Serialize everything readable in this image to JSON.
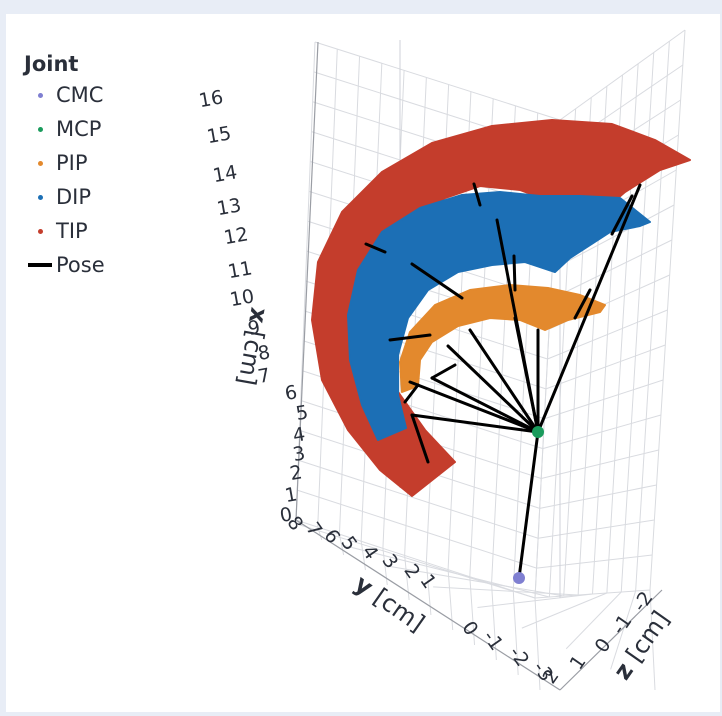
{
  "chart_data": {
    "type": "scatter",
    "title": "",
    "legend_title": "Joint",
    "series": [
      {
        "name": "CMC",
        "color": "#7f7fd1",
        "marker": "point"
      },
      {
        "name": "MCP",
        "color": "#1a9b5c",
        "marker": "point"
      },
      {
        "name": "PIP",
        "color": "#e3892d",
        "marker": "point"
      },
      {
        "name": "DIP",
        "color": "#1c6fb5",
        "marker": "point"
      },
      {
        "name": "TIP",
        "color": "#c43d2c",
        "marker": "point"
      },
      {
        "name": "Pose",
        "color": "#000000",
        "marker": "line"
      }
    ],
    "axes": {
      "x": {
        "label": "x",
        "unit": "[cm]",
        "ticks": [
          "0",
          "1",
          "2",
          "3",
          "4",
          "5",
          "6",
          "7",
          "8",
          "9",
          "10",
          "11",
          "12",
          "13",
          "14",
          "15",
          "16"
        ],
        "range": [
          0,
          16
        ]
      },
      "y": {
        "label": "y",
        "unit": "[cm]",
        "ticks": [
          "8",
          "7",
          "6",
          "5",
          "4",
          "3",
          "2",
          "1",
          "0",
          "-1",
          "-2",
          "-3"
        ],
        "range": [
          -3,
          8
        ]
      },
      "z": {
        "label": "z",
        "unit": "[cm]",
        "ticks": [
          "2",
          "1",
          "0",
          "-1",
          "-2"
        ],
        "range": [
          -2,
          2
        ]
      }
    },
    "grid": true,
    "legend_position": "top-left"
  }
}
